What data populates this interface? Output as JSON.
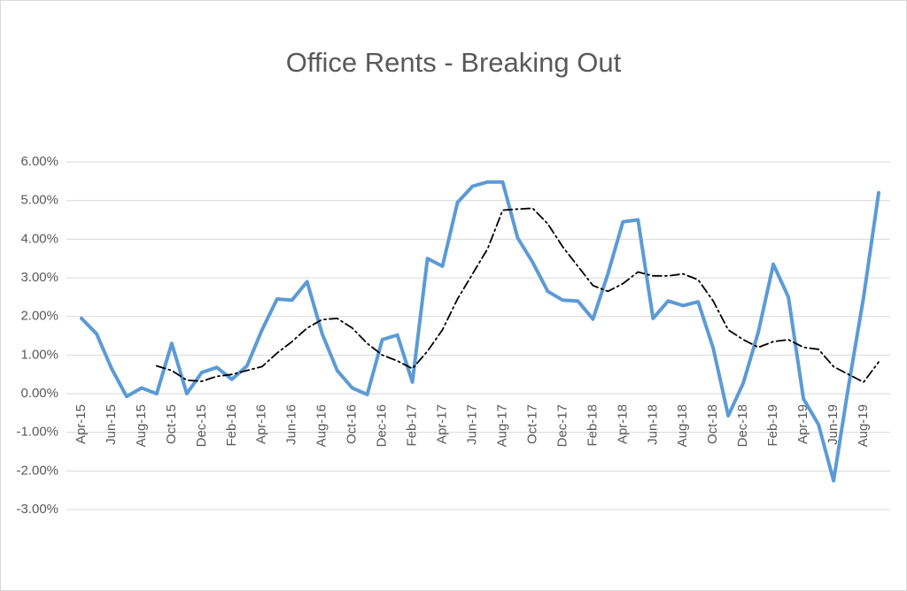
{
  "chart_data": {
    "type": "line",
    "title": "Office Rents - Breaking Out",
    "categories": [
      "Apr-15",
      null,
      "Jun-15",
      null,
      "Aug-15",
      null,
      "Oct-15",
      null,
      "Dec-15",
      null,
      "Feb-16",
      null,
      "Apr-16",
      null,
      "Jun-16",
      null,
      "Aug-16",
      null,
      "Oct-16",
      null,
      "Dec-16",
      null,
      "Feb-17",
      null,
      "Apr-17",
      null,
      "Jun-17",
      null,
      "Aug-17",
      null,
      "Oct-17",
      null,
      "Dec-17",
      null,
      "Feb-18",
      null,
      "Apr-18",
      null,
      "Jun-18",
      null,
      "Aug-18",
      null,
      "Oct-18",
      null,
      "Dec-18",
      null,
      "Feb-19",
      null,
      "Apr-19",
      null,
      "Jun-19",
      null,
      "Aug-19",
      null
    ],
    "series": [
      {
        "color": "#5b9bd5",
        "style": "solid",
        "values": [
          1.95,
          1.55,
          0.65,
          -0.07,
          0.15,
          0.0,
          1.3,
          0.0,
          0.55,
          0.68,
          0.37,
          0.72,
          1.65,
          2.45,
          2.42,
          2.9,
          1.55,
          0.6,
          0.15,
          -0.02,
          1.4,
          1.52,
          0.3,
          3.5,
          3.3,
          4.95,
          5.37,
          5.48,
          5.48,
          4.03,
          3.4,
          2.65,
          2.42,
          2.4,
          1.93,
          3.1,
          4.45,
          4.5,
          1.95,
          2.4,
          2.28,
          2.38,
          1.18,
          -0.57,
          0.28,
          1.6,
          3.35,
          2.5,
          -0.13,
          -0.8,
          -2.25,
          0.2,
          2.5,
          5.2
        ]
      },
      {
        "color": "#000000",
        "style": "dashdot",
        "values": [
          null,
          null,
          null,
          null,
          null,
          0.72,
          0.6,
          0.35,
          0.32,
          0.45,
          0.5,
          0.6,
          0.7,
          1.05,
          1.35,
          1.7,
          1.92,
          1.95,
          1.7,
          1.3,
          1.0,
          0.85,
          0.65,
          1.1,
          1.65,
          2.45,
          3.1,
          3.75,
          4.75,
          4.78,
          4.8,
          4.4,
          3.8,
          3.3,
          2.8,
          2.65,
          2.85,
          3.15,
          3.05,
          3.05,
          3.1,
          2.95,
          2.4,
          1.65,
          1.4,
          1.2,
          1.35,
          1.4,
          1.2,
          1.15,
          0.7,
          0.5,
          0.3,
          0.82
        ]
      }
    ],
    "ylim": [
      -3,
      6
    ],
    "yticks": [
      {
        "value": -3,
        "label": "-3.00%"
      },
      {
        "value": -2,
        "label": "-2.00%"
      },
      {
        "value": -1,
        "label": "-1.00%"
      },
      {
        "value": 0,
        "label": "0.00%"
      },
      {
        "value": 1,
        "label": "1.00%"
      },
      {
        "value": 2,
        "label": "2.00%"
      },
      {
        "value": 3,
        "label": "3.00%"
      },
      {
        "value": 4,
        "label": "4.00%"
      },
      {
        "value": 5,
        "label": "5.00%"
      },
      {
        "value": 6,
        "label": "6.00%"
      }
    ],
    "grid": true
  }
}
